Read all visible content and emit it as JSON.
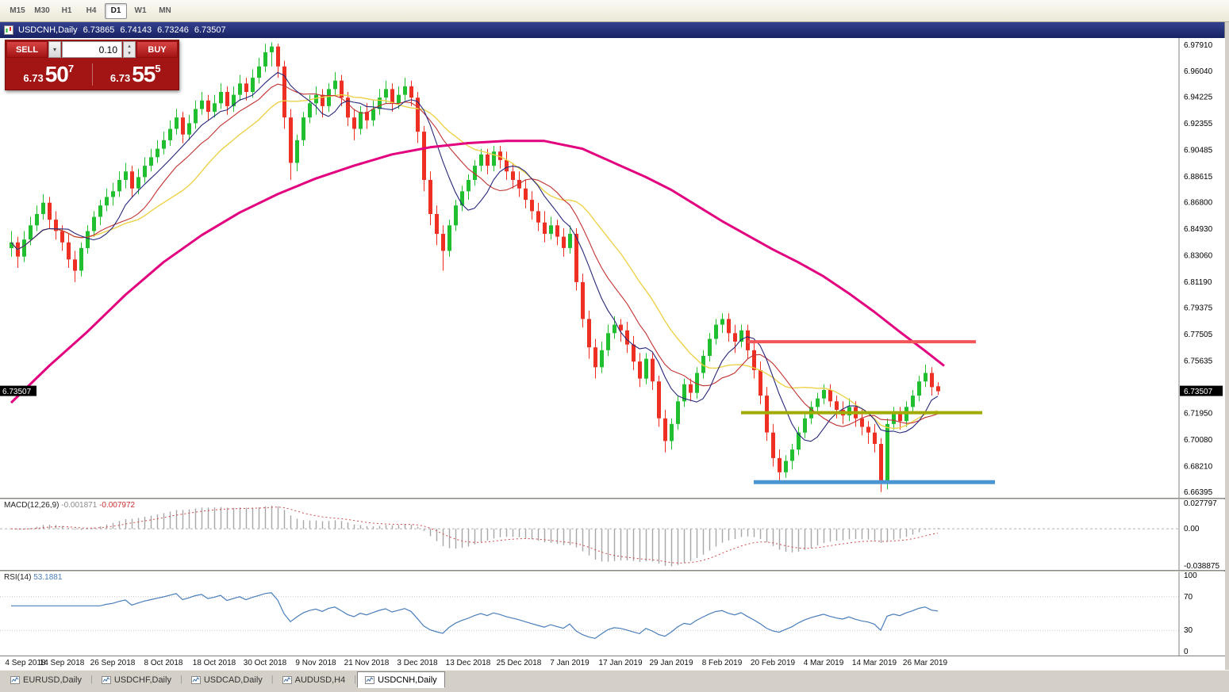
{
  "toolbar": {
    "timeframes": [
      {
        "label": "M15",
        "active": false
      },
      {
        "label": "M30",
        "active": false
      },
      {
        "label": "H1",
        "active": false
      },
      {
        "label": "H4",
        "active": false
      },
      {
        "label": "D1",
        "active": true
      },
      {
        "label": "W1",
        "active": false
      },
      {
        "label": "MN",
        "active": false
      }
    ]
  },
  "window": {
    "title": {
      "symbol_period": "USDCNH,Daily",
      "open": "6.73865",
      "high": "6.74143",
      "low": "6.73246",
      "close": "6.73507"
    }
  },
  "trade_panel": {
    "sell_label": "SELL",
    "buy_label": "BUY",
    "volume": "0.10",
    "dropdown_icon": "▾",
    "spin_up": "▴",
    "spin_down": "▾",
    "sell_price": {
      "big": "6.73",
      "mid": "50",
      "sup": "7"
    },
    "buy_price": {
      "big": "6.73",
      "mid": "55",
      "sup": "5"
    }
  },
  "chart_data": {
    "type": "candlestick",
    "symbol": "USDCNH",
    "period": "Daily",
    "current_price": "6.73507",
    "price_range": {
      "top": 6.984,
      "bottom": 6.66
    },
    "price_axis_labels": [
      "6.97910",
      "6.96040",
      "6.94225",
      "6.92355",
      "6.90485",
      "6.88615",
      "6.86800",
      "6.84930",
      "6.83060",
      "6.81190",
      "6.79375",
      "6.77505",
      "6.75635",
      "6.71950",
      "6.70080",
      "6.68210",
      "6.66395"
    ],
    "ticks_every": 8,
    "x_tick_labels": [
      "4 Sep 2018",
      "14 Sep 2018",
      "26 Sep 2018",
      "8 Oct 2018",
      "18 Oct 2018",
      "30 Oct 2018",
      "9 Nov 2018",
      "21 Nov 2018",
      "3 Dec 2018",
      "13 Dec 2018",
      "25 Dec 2018",
      "7 Jan 2019",
      "17 Jan 2019",
      "29 Jan 2019",
      "8 Feb 2019",
      "20 Feb 2019",
      "4 Mar 2019",
      "14 Mar 2019",
      "26 Mar 2019"
    ],
    "candles": [
      [
        6.836,
        6.848,
        6.83,
        6.84
      ],
      [
        6.84,
        6.844,
        6.822,
        6.83
      ],
      [
        6.83,
        6.848,
        6.826,
        6.842
      ],
      [
        6.842,
        6.858,
        6.838,
        6.852
      ],
      [
        6.852,
        6.866,
        6.848,
        6.86
      ],
      [
        6.86,
        6.874,
        6.856,
        6.868
      ],
      [
        6.868,
        6.872,
        6.85,
        6.856
      ],
      [
        6.856,
        6.862,
        6.842,
        6.848
      ],
      [
        6.848,
        6.852,
        6.834,
        6.84
      ],
      [
        6.84,
        6.846,
        6.822,
        6.828
      ],
      [
        6.828,
        6.834,
        6.812,
        6.82
      ],
      [
        6.82,
        6.84,
        6.816,
        6.836
      ],
      [
        6.836,
        6.852,
        6.832,
        6.848
      ],
      [
        6.848,
        6.862,
        6.844,
        6.858
      ],
      [
        6.858,
        6.87,
        6.852,
        6.866
      ],
      [
        6.866,
        6.878,
        6.862,
        6.872
      ],
      [
        6.872,
        6.882,
        6.866,
        6.876
      ],
      [
        6.876,
        6.89,
        6.872,
        6.884
      ],
      [
        6.884,
        6.896,
        6.878,
        6.89
      ],
      [
        6.89,
        6.894,
        6.872,
        6.878
      ],
      [
        6.878,
        6.892,
        6.874,
        6.886
      ],
      [
        6.886,
        6.9,
        6.882,
        6.894
      ],
      [
        6.894,
        6.906,
        6.89,
        6.9
      ],
      [
        6.9,
        6.912,
        6.896,
        6.906
      ],
      [
        6.906,
        6.918,
        6.902,
        6.912
      ],
      [
        6.912,
        6.926,
        6.908,
        6.92
      ],
      [
        6.92,
        6.934,
        6.916,
        6.928
      ],
      [
        6.928,
        6.932,
        6.91,
        6.916
      ],
      [
        6.916,
        6.93,
        6.912,
        6.924
      ],
      [
        6.924,
        6.94,
        6.92,
        6.934
      ],
      [
        6.934,
        6.946,
        6.93,
        6.94
      ],
      [
        6.94,
        6.944,
        6.926,
        6.932
      ],
      [
        6.932,
        6.944,
        6.928,
        6.938
      ],
      [
        6.938,
        6.952,
        6.934,
        6.946
      ],
      [
        6.946,
        6.95,
        6.93,
        6.936
      ],
      [
        6.936,
        6.95,
        6.932,
        6.944
      ],
      [
        6.944,
        6.958,
        6.94,
        6.952
      ],
      [
        6.952,
        6.956,
        6.94,
        6.946
      ],
      [
        6.946,
        6.962,
        6.942,
        6.956
      ],
      [
        6.956,
        6.97,
        6.952,
        6.964
      ],
      [
        6.964,
        6.98,
        6.96,
        6.974
      ],
      [
        6.974,
        6.981,
        6.964,
        6.978
      ],
      [
        6.978,
        6.98,
        6.956,
        6.964
      ],
      [
        6.964,
        6.968,
        6.92,
        6.928
      ],
      [
        6.928,
        6.934,
        6.884,
        6.896
      ],
      [
        6.896,
        6.916,
        6.89,
        6.912
      ],
      [
        6.912,
        6.932,
        6.908,
        6.928
      ],
      [
        6.928,
        6.944,
        6.924,
        6.938
      ],
      [
        6.938,
        6.95,
        6.93,
        6.944
      ],
      [
        6.944,
        6.948,
        6.928,
        6.936
      ],
      [
        6.936,
        6.952,
        6.932,
        6.948
      ],
      [
        6.948,
        6.96,
        6.944,
        6.954
      ],
      [
        6.954,
        6.958,
        6.936,
        6.942
      ],
      [
        6.942,
        6.946,
        6.922,
        6.928
      ],
      [
        6.928,
        6.934,
        6.912,
        6.92
      ],
      [
        6.92,
        6.936,
        6.916,
        6.932
      ],
      [
        6.932,
        6.938,
        6.92,
        6.926
      ],
      [
        6.926,
        6.94,
        6.922,
        6.934
      ],
      [
        6.934,
        6.948,
        6.93,
        6.942
      ],
      [
        6.942,
        6.954,
        6.938,
        6.948
      ],
      [
        6.948,
        6.952,
        6.932,
        6.938
      ],
      [
        6.938,
        6.95,
        6.934,
        6.944
      ],
      [
        6.944,
        6.956,
        6.94,
        6.95
      ],
      [
        6.95,
        6.954,
        6.936,
        6.942
      ],
      [
        6.942,
        6.946,
        6.91,
        6.918
      ],
      [
        6.918,
        6.922,
        6.876,
        6.884
      ],
      [
        6.884,
        6.89,
        6.852,
        6.86
      ],
      [
        6.86,
        6.866,
        6.838,
        6.846
      ],
      [
        6.846,
        6.852,
        6.82,
        6.834
      ],
      [
        6.834,
        6.856,
        6.83,
        6.852
      ],
      [
        6.852,
        6.87,
        6.848,
        6.866
      ],
      [
        6.866,
        6.88,
        6.862,
        6.876
      ],
      [
        6.876,
        6.888,
        6.87,
        6.884
      ],
      [
        6.884,
        6.898,
        6.88,
        6.894
      ],
      [
        6.894,
        6.906,
        6.89,
        6.902
      ],
      [
        6.902,
        6.906,
        6.888,
        6.894
      ],
      [
        6.894,
        6.908,
        6.89,
        6.904
      ],
      [
        6.904,
        6.908,
        6.892,
        6.898
      ],
      [
        6.898,
        6.904,
        6.884,
        6.89
      ],
      [
        6.89,
        6.896,
        6.878,
        6.884
      ],
      [
        6.884,
        6.89,
        6.872,
        6.878
      ],
      [
        6.878,
        6.884,
        6.864,
        6.87
      ],
      [
        6.87,
        6.876,
        6.856,
        6.862
      ],
      [
        6.862,
        6.868,
        6.848,
        6.854
      ],
      [
        6.854,
        6.862,
        6.84,
        6.846
      ],
      [
        6.846,
        6.858,
        6.842,
        6.852
      ],
      [
        6.852,
        6.856,
        6.838,
        6.844
      ],
      [
        6.844,
        6.85,
        6.83,
        6.836
      ],
      [
        6.836,
        6.852,
        6.832,
        6.846
      ],
      [
        6.846,
        6.85,
        6.806,
        6.812
      ],
      [
        6.812,
        6.818,
        6.78,
        6.786
      ],
      [
        6.786,
        6.792,
        6.758,
        6.766
      ],
      [
        6.766,
        6.772,
        6.744,
        6.752
      ],
      [
        6.752,
        6.77,
        6.748,
        6.764
      ],
      [
        6.764,
        6.782,
        6.76,
        6.776
      ],
      [
        6.776,
        6.788,
        6.772,
        6.782
      ],
      [
        6.782,
        6.786,
        6.77,
        6.778
      ],
      [
        6.778,
        6.784,
        6.762,
        6.768
      ],
      [
        6.768,
        6.774,
        6.75,
        6.756
      ],
      [
        6.756,
        6.762,
        6.738,
        6.744
      ],
      [
        6.744,
        6.762,
        6.74,
        6.758
      ],
      [
        6.758,
        6.762,
        6.736,
        6.742
      ],
      [
        6.742,
        6.746,
        6.71,
        6.716
      ],
      [
        6.716,
        6.722,
        6.692,
        6.7
      ],
      [
        6.7,
        6.716,
        6.694,
        6.712
      ],
      [
        6.712,
        6.732,
        6.708,
        6.728
      ],
      [
        6.728,
        6.744,
        6.724,
        6.74
      ],
      [
        6.74,
        6.744,
        6.728,
        6.734
      ],
      [
        6.734,
        6.752,
        6.73,
        6.748
      ],
      [
        6.748,
        6.764,
        6.744,
        6.76
      ],
      [
        6.76,
        6.776,
        6.756,
        6.772
      ],
      [
        6.772,
        6.786,
        6.768,
        6.782
      ],
      [
        6.782,
        6.79,
        6.776,
        6.786
      ],
      [
        6.786,
        6.79,
        6.77,
        6.776
      ],
      [
        6.776,
        6.782,
        6.762,
        6.77
      ],
      [
        6.77,
        6.782,
        6.766,
        6.778
      ],
      [
        6.778,
        6.782,
        6.758,
        6.764
      ],
      [
        6.764,
        6.77,
        6.744,
        6.75
      ],
      [
        6.75,
        6.756,
        6.726,
        6.732
      ],
      [
        6.732,
        6.738,
        6.7,
        6.706
      ],
      [
        6.706,
        6.712,
        6.682,
        6.688
      ],
      [
        6.688,
        6.694,
        6.672,
        6.678
      ],
      [
        6.678,
        6.69,
        6.674,
        6.686
      ],
      [
        6.686,
        6.698,
        6.68,
        6.694
      ],
      [
        6.694,
        6.71,
        6.69,
        6.706
      ],
      [
        6.706,
        6.72,
        6.702,
        6.716
      ],
      [
        6.716,
        6.728,
        6.712,
        6.724
      ],
      [
        6.724,
        6.734,
        6.72,
        6.73
      ],
      [
        6.73,
        6.74,
        6.726,
        6.736
      ],
      [
        6.736,
        6.74,
        6.724,
        6.728
      ],
      [
        6.728,
        6.732,
        6.716,
        6.722
      ],
      [
        6.722,
        6.728,
        6.712,
        6.718
      ],
      [
        6.718,
        6.73,
        6.714,
        6.724
      ],
      [
        6.724,
        6.728,
        6.71,
        6.716
      ],
      [
        6.716,
        6.722,
        6.704,
        6.71
      ],
      [
        6.71,
        6.714,
        6.698,
        6.706
      ],
      [
        6.706,
        6.712,
        6.692,
        6.698
      ],
      [
        6.698,
        6.702,
        6.664,
        6.67
      ],
      [
        6.67,
        6.716,
        6.666,
        6.712
      ],
      [
        6.712,
        6.724,
        6.708,
        6.72
      ],
      [
        6.72,
        6.724,
        6.708,
        6.714
      ],
      [
        6.714,
        6.728,
        6.71,
        6.724
      ],
      [
        6.724,
        6.736,
        6.72,
        6.732
      ],
      [
        6.732,
        6.746,
        6.728,
        6.742
      ],
      [
        6.742,
        6.754,
        6.738,
        6.748
      ],
      [
        6.748,
        6.752,
        6.732,
        6.738
      ],
      [
        6.7386,
        6.7414,
        6.7325,
        6.7351
      ]
    ],
    "overlays": {
      "ma_yellow": {
        "color": "#ecd24a",
        "period": 21
      },
      "ma_red": {
        "color": "#c23232",
        "period": 13
      },
      "ma_navy": {
        "color": "#26267a",
        "period": 8
      },
      "ma_magenta": {
        "color": "#e2007f",
        "width": 3,
        "points": [
          [
            0,
            6.727
          ],
          [
            6,
            6.753
          ],
          [
            12,
            6.777
          ],
          [
            18,
            6.803
          ],
          [
            24,
            6.826
          ],
          [
            30,
            6.845
          ],
          [
            36,
            6.861
          ],
          [
            42,
            6.874
          ],
          [
            48,
            6.885
          ],
          [
            54,
            6.894
          ],
          [
            60,
            6.902
          ],
          [
            66,
            6.907
          ],
          [
            72,
            6.91
          ],
          [
            78,
            6.9115
          ],
          [
            84,
            6.9115
          ],
          [
            90,
            6.906
          ],
          [
            96,
            6.894
          ],
          [
            100,
            6.886
          ],
          [
            104,
            6.877
          ],
          [
            108,
            6.866
          ],
          [
            112,
            6.855
          ],
          [
            116,
            6.845
          ],
          [
            120,
            6.835
          ],
          [
            124,
            6.826
          ],
          [
            128,
            6.816
          ],
          [
            132,
            6.804
          ],
          [
            136,
            6.791
          ],
          [
            140,
            6.777
          ],
          [
            144,
            6.7635
          ],
          [
            147,
            6.753
          ]
        ]
      },
      "hlines": [
        {
          "name": "resistance-line-red",
          "color": "#f25656",
          "price": 6.77,
          "from": 116,
          "to": 152,
          "width": 4
        },
        {
          "name": "support-line-olive",
          "color": "#a0aa00",
          "price": 6.72,
          "from": 115,
          "to": 153,
          "width": 4
        },
        {
          "name": "support-line-blue",
          "color": "#4a96d2",
          "price": 6.671,
          "from": 117,
          "to": 155,
          "width": 5
        }
      ]
    },
    "indicators": [
      {
        "name": "MACD",
        "label": "MACD(12,26,9)",
        "value_main": "-0.001871",
        "value_signal": "-0.007972",
        "params": [
          12,
          26,
          9
        ],
        "axis_labels": [
          "0.027797",
          "0.00",
          "-0.038875"
        ],
        "range": {
          "max": 0.03,
          "min": -0.042
        }
      },
      {
        "name": "RSI",
        "label": "RSI(14)",
        "value": "53.1881",
        "period": 14,
        "axis_labels": [
          "100",
          "70",
          "30",
          "0"
        ],
        "levels": [
          70,
          30
        ],
        "range": {
          "max": 100,
          "min": 0
        }
      }
    ]
  },
  "bottom_tabs": [
    {
      "label": "EURUSD,Daily",
      "active": false
    },
    {
      "label": "USDCHF,Daily",
      "active": false
    },
    {
      "label": "USDCAD,Daily",
      "active": false
    },
    {
      "label": "AUDUSD,H4",
      "active": false
    },
    {
      "label": "USDCNH,Daily",
      "active": true
    }
  ],
  "colors": {
    "bull": "#1fbf2f",
    "bear": "#ee3024",
    "rsi": "#4a7ebb",
    "macd_hist": "#a6a6a6",
    "macd_signal": "#cf4a4a",
    "price_tag_bg": "#000000",
    "price_tag_text": "#ffffff"
  }
}
